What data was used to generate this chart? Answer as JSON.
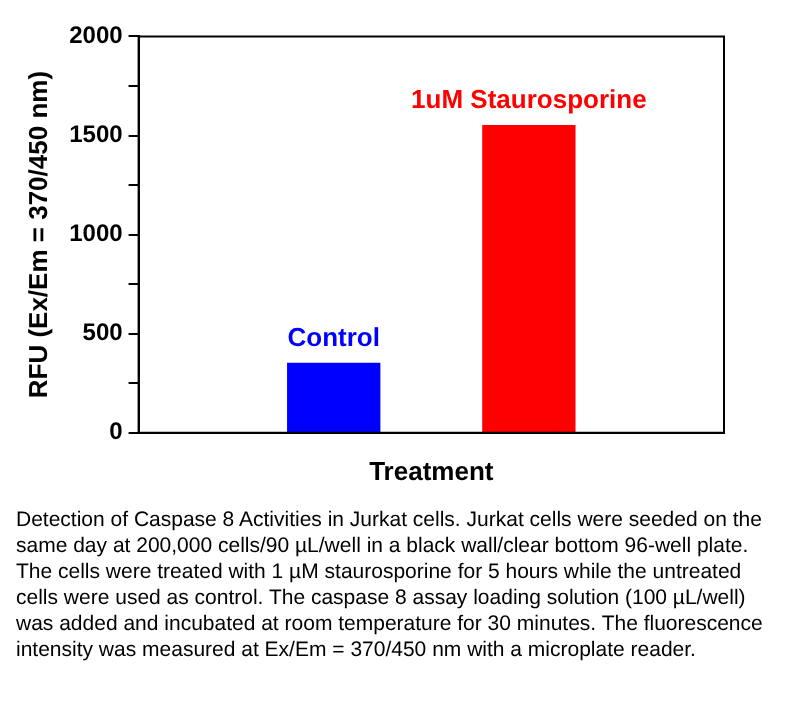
{
  "chart_data": {
    "type": "bar",
    "categories": [
      "Control",
      "1uM Staurosporine"
    ],
    "values": [
      350,
      1550
    ],
    "colors": [
      "#0000ff",
      "#ff0000"
    ],
    "xlabel": "Treatment",
    "ylabel": "RFU (Ex/Em = 370/450 nm)",
    "ylim": [
      0,
      2000
    ],
    "yticks": [
      0,
      {
        "value": 250,
        "label": null
      },
      500,
      {
        "value": 750,
        "label": null
      },
      1000,
      {
        "value": 1250,
        "label": null
      },
      1500,
      {
        "value": 1750,
        "label": null
      },
      2000
    ],
    "tick_labels": "y",
    "grid": false,
    "legend": false,
    "annotations": [
      "Detection of Caspase 8 Activities in Jurkat cells. Jurkat cells were seeded on the same day at 200,000 cells/90 µL/well in a black wall/clear bottom 96-well plate. The cells were treated with 1 µM staurosporine for 5 hours while the untreated cells were used as control. The caspase 8 assay loading solution (100 µL/well) was added and incubated at room temperature for 30 minutes. The fluorescence intensity was measured at Ex/Em = 370/450 nm with a microplate reader."
    ]
  }
}
